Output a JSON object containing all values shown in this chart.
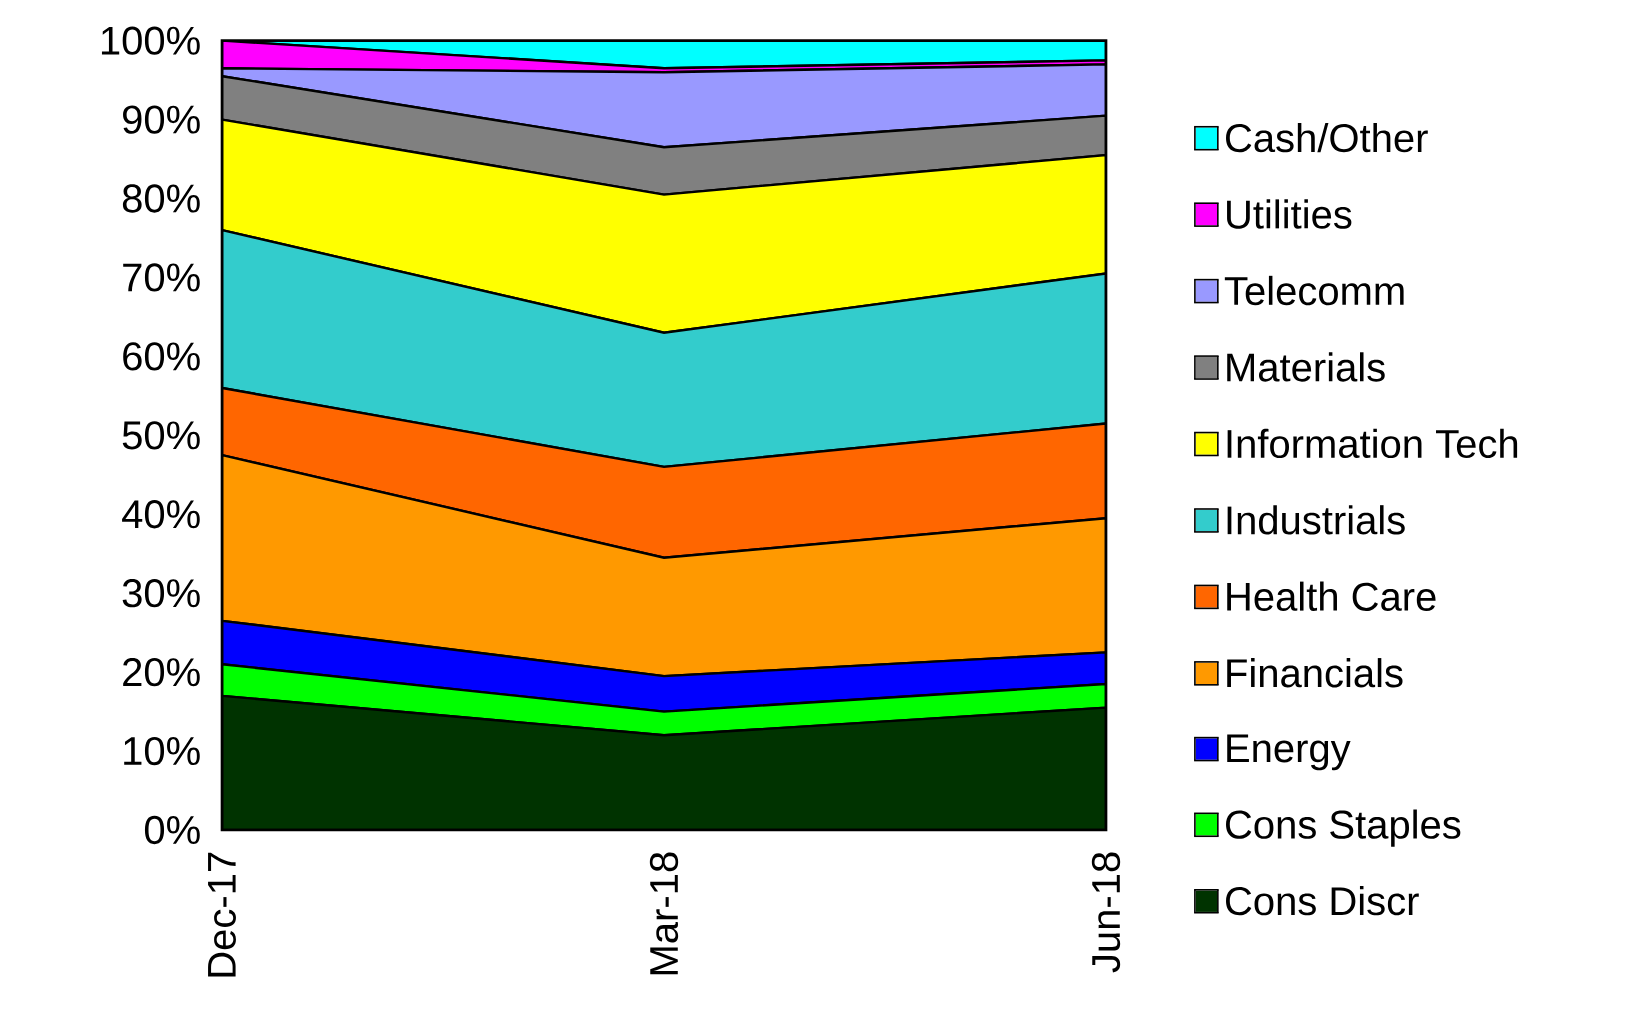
{
  "chart_data": {
    "type": "area",
    "stacked": true,
    "categories": [
      "Dec-17",
      "Mar-18",
      "Jun-18"
    ],
    "series": [
      {
        "name": "Cons Discr",
        "color": "#003300",
        "values": [
          17,
          12,
          15.5
        ]
      },
      {
        "name": "Cons Staples",
        "color": "#00ff00",
        "values": [
          4,
          3,
          3
        ]
      },
      {
        "name": "Energy",
        "color": "#0000ff",
        "values": [
          5.5,
          4.5,
          4
        ]
      },
      {
        "name": "Financials",
        "color": "#ff9900",
        "values": [
          21,
          15,
          17
        ]
      },
      {
        "name": "Health Care",
        "color": "#ff6600",
        "values": [
          8.5,
          11.5,
          12
        ]
      },
      {
        "name": "Industrials",
        "color": "#33cccc",
        "values": [
          20,
          17,
          19
        ]
      },
      {
        "name": "Information Tech",
        "color": "#ffff00",
        "values": [
          14,
          17.5,
          15
        ]
      },
      {
        "name": "Materials",
        "color": "#808080",
        "values": [
          5.5,
          6,
          5
        ]
      },
      {
        "name": "Telecomm",
        "color": "#9999ff",
        "values": [
          1,
          9.5,
          6.5
        ]
      },
      {
        "name": "Utilities",
        "color": "#ff00ff",
        "values": [
          3.5,
          0.5,
          0.5
        ]
      },
      {
        "name": "Cash/Other",
        "color": "#00ffff",
        "values": [
          0,
          3.5,
          2.5
        ]
      }
    ],
    "ylim": [
      0,
      100
    ],
    "yticks": [
      {
        "value": 0,
        "label": "0%"
      },
      {
        "value": 10,
        "label": "10%"
      },
      {
        "value": 20,
        "label": "20%"
      },
      {
        "value": 30,
        "label": "30%"
      },
      {
        "value": 40,
        "label": "40%"
      },
      {
        "value": 50,
        "label": "50%"
      },
      {
        "value": 60,
        "label": "60%"
      },
      {
        "value": 70,
        "label": "70%"
      },
      {
        "value": 80,
        "label": "80%"
      },
      {
        "value": 90,
        "label": "90%"
      },
      {
        "value": 100,
        "label": "100%"
      }
    ],
    "legend": "right"
  }
}
